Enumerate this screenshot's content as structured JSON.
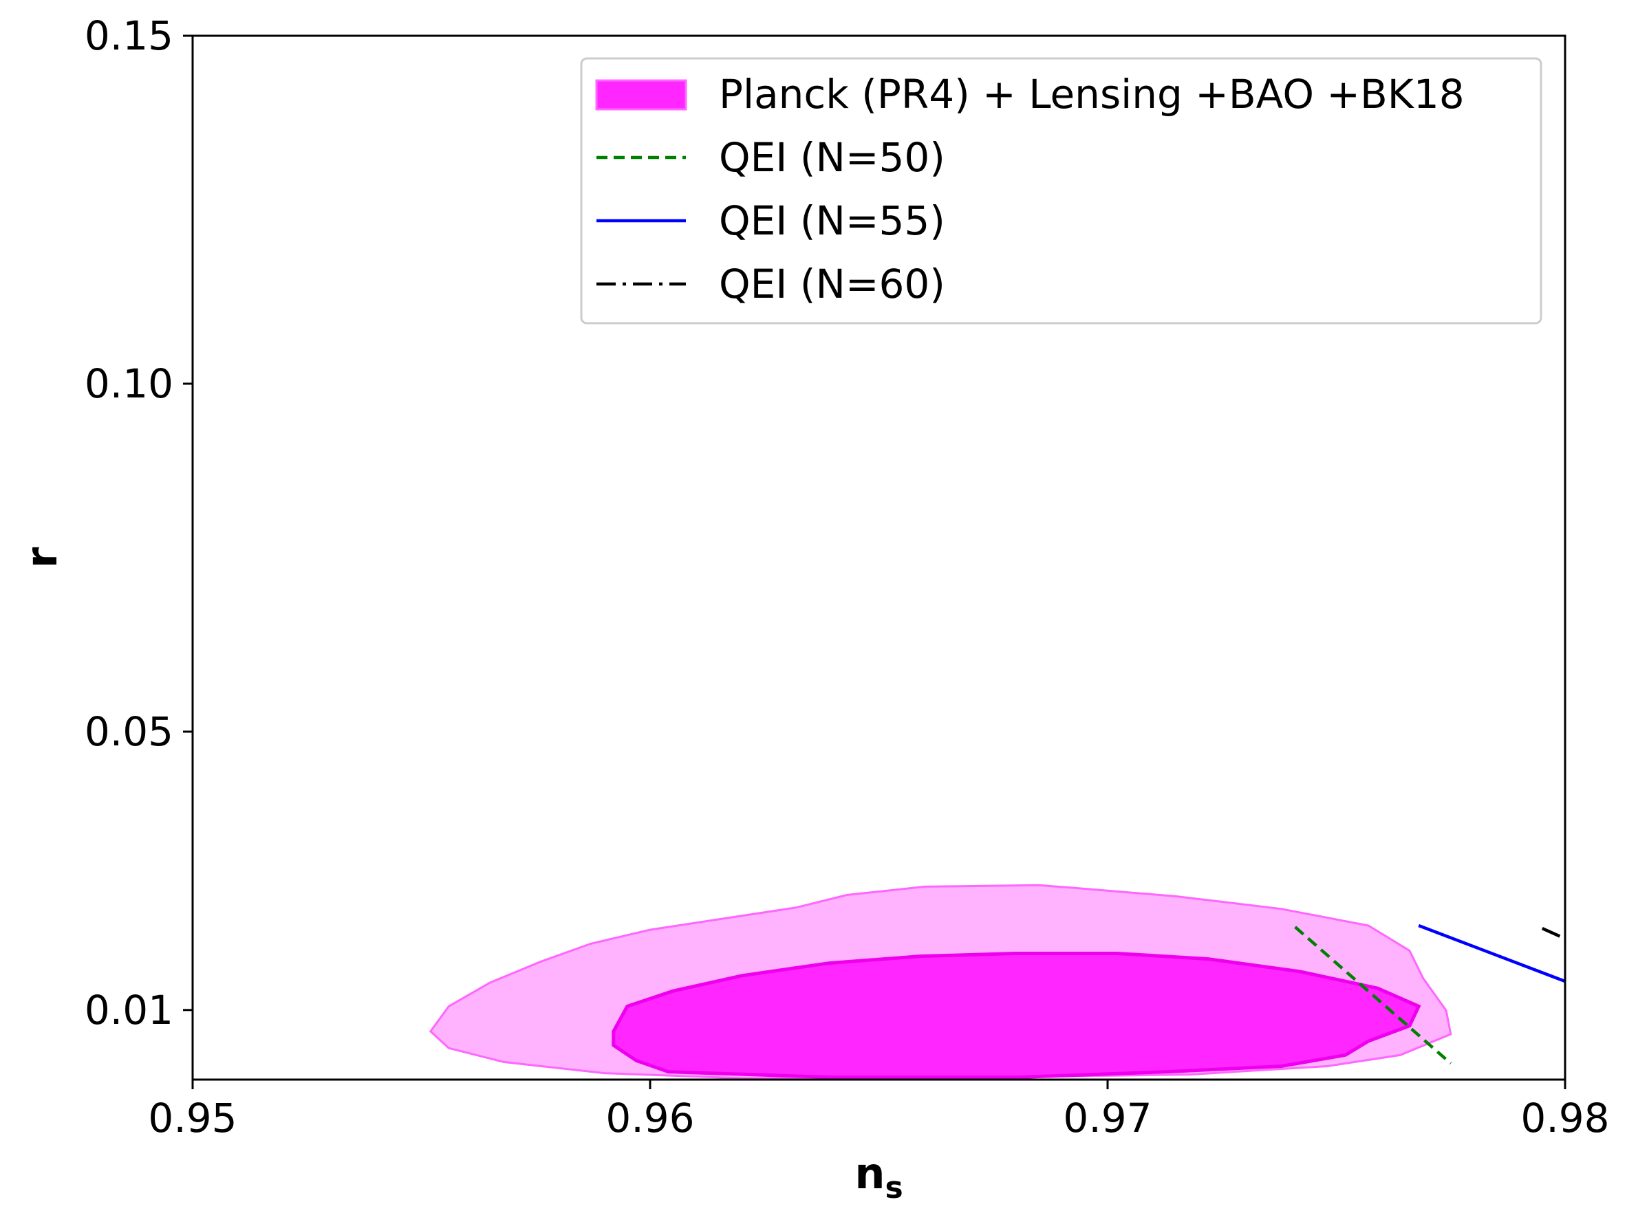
{
  "chart_data": {
    "type": "contour",
    "xlabel": "n",
    "xlabel_sub": "s",
    "ylabel": "r",
    "xlim": [
      0.95,
      0.98
    ],
    "ylim": [
      0.0,
      0.15
    ],
    "x_ticks": [
      {
        "value": 0.95,
        "label": "0.95"
      },
      {
        "value": 0.96,
        "label": "0.96"
      },
      {
        "value": 0.97,
        "label": "0.97"
      },
      {
        "value": 0.98,
        "label": "0.98"
      }
    ],
    "y_ticks": [
      {
        "value": 0.01,
        "label": "0.01"
      },
      {
        "value": 0.05,
        "label": "0.05"
      },
      {
        "value": 0.1,
        "label": "0.10"
      },
      {
        "value": 0.15,
        "label": "0.15"
      }
    ],
    "legend_position": "top-right",
    "contours": {
      "name": "Planck (PR4) + Lensing +BAO +BK18",
      "color": "#ff00ff",
      "outer_95": [
        [
          0.9552,
          0.00693
        ],
        [
          0.9556,
          0.01053
        ],
        [
          0.9565,
          0.01393
        ],
        [
          0.9576,
          0.01693
        ],
        [
          0.9587,
          0.01953
        ],
        [
          0.96,
          0.02153
        ],
        [
          0.9616,
          0.02313
        ],
        [
          0.9632,
          0.02473
        ],
        [
          0.9643,
          0.02653
        ],
        [
          0.966,
          0.02773
        ],
        [
          0.9685,
          0.02793
        ],
        [
          0.9693,
          0.02753
        ],
        [
          0.9715,
          0.02633
        ],
        [
          0.9738,
          0.02453
        ],
        [
          0.9757,
          0.02213
        ],
        [
          0.9766,
          0.01853
        ],
        [
          0.9769,
          0.01453
        ],
        [
          0.9774,
          0.00993
        ],
        [
          0.9775,
          0.00653
        ],
        [
          0.9764,
          0.00353
        ],
        [
          0.9748,
          0.00193
        ],
        [
          0.9718,
          0.00073
        ],
        [
          0.966,
          0.0002
        ],
        [
          0.962,
          0.0002
        ],
        [
          0.959,
          0.00093
        ],
        [
          0.9568,
          0.00253
        ],
        [
          0.9556,
          0.00453
        ],
        [
          0.9552,
          0.00693
        ]
      ],
      "inner_68": [
        [
          0.9592,
          0.00693
        ],
        [
          0.9595,
          0.01053
        ],
        [
          0.9605,
          0.01273
        ],
        [
          0.962,
          0.01493
        ],
        [
          0.9639,
          0.01673
        ],
        [
          0.9659,
          0.01773
        ],
        [
          0.968,
          0.01813
        ],
        [
          0.9702,
          0.01813
        ],
        [
          0.9722,
          0.01733
        ],
        [
          0.9742,
          0.01553
        ],
        [
          0.9759,
          0.01313
        ],
        [
          0.9768,
          0.01053
        ],
        [
          0.9766,
          0.00773
        ],
        [
          0.9757,
          0.00553
        ],
        [
          0.9752,
          0.00353
        ],
        [
          0.9738,
          0.00193
        ],
        [
          0.9713,
          0.00113
        ],
        [
          0.968,
          0.00033
        ],
        [
          0.964,
          0.00033
        ],
        [
          0.9604,
          0.00113
        ],
        [
          0.9597,
          0.00273
        ],
        [
          0.9592,
          0.00493
        ],
        [
          0.9592,
          0.00693
        ]
      ]
    },
    "series": [
      {
        "name": "QEI (N=50)",
        "color": "#008000",
        "dash": "dashed",
        "x": [
          0.9741,
          0.9775
        ],
        "y": [
          0.02193,
          0.00233
        ]
      },
      {
        "name": "QEI (N=55)",
        "color": "#0000ff",
        "dash": "solid",
        "x": [
          0.9768,
          0.9858
        ],
        "y": [
          0.02213,
          -0.0004
        ]
      },
      {
        "name": "QEI (N=60)",
        "color": "#000000",
        "dash": "dashdot",
        "x": [
          0.9795,
          0.9868
        ],
        "y": [
          0.02173,
          0.0003
        ]
      }
    ]
  }
}
